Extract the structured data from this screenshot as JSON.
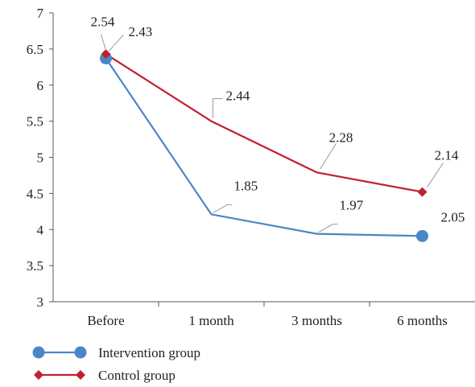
{
  "chart_data": {
    "type": "line",
    "categories": [
      "Before",
      "1 month",
      "3 months",
      "6 months"
    ],
    "series": [
      {
        "name": "Intervention group",
        "values": [
          6.37,
          4.21,
          3.94,
          3.91
        ],
        "labels": [
          "2.54",
          "1.85",
          "1.97",
          "2.05"
        ],
        "color": "#4a86c5",
        "marker": "circle"
      },
      {
        "name": "Control group",
        "values": [
          6.43,
          5.5,
          4.79,
          4.52
        ],
        "labels": [
          "2.43",
          "2.44",
          "2.28",
          "2.14"
        ],
        "color": "#c0212f",
        "marker": "diamond"
      }
    ],
    "ylim": [
      3,
      7
    ],
    "yticks": [
      "3",
      "3.5",
      "4",
      "4.5",
      "5",
      "5.5",
      "6",
      "6.5",
      "7"
    ],
    "grid": false,
    "legend_position": "bottom-left"
  }
}
